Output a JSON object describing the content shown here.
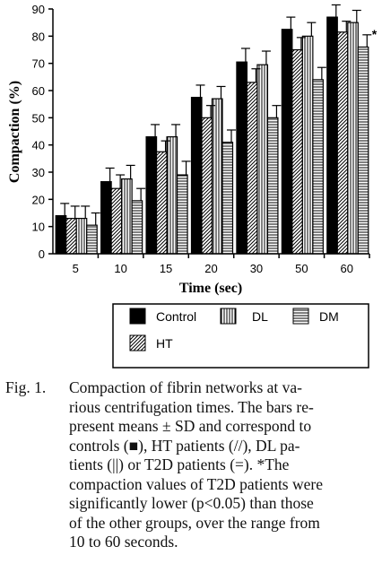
{
  "chart_data": {
    "type": "bar",
    "xlabel": "Time (sec)",
    "ylabel": "Compaction (%)",
    "ylim": [
      0,
      90
    ],
    "yticks": [
      "0",
      "10",
      "20",
      "30",
      "40",
      "50",
      "60",
      "70",
      "80",
      "90"
    ],
    "categories": [
      "5",
      "10",
      "15",
      "20",
      "30",
      "50",
      "60"
    ],
    "series": [
      {
        "name": "Control",
        "pattern": "solid",
        "values": [
          14,
          26.5,
          43,
          57.5,
          70.5,
          82.5,
          87
        ],
        "sd": [
          4.5,
          5,
          4.5,
          4.5,
          5,
          4.5,
          4.5
        ]
      },
      {
        "name": "HT",
        "pattern": "diagonal",
        "values": [
          13,
          24,
          37.5,
          50,
          63,
          75,
          81.5
        ],
        "sd": [
          4.5,
          5,
          4,
          4.5,
          5,
          4.5,
          4
        ]
      },
      {
        "name": "DL",
        "pattern": "vertical",
        "values": [
          13,
          27.5,
          43,
          57,
          69.5,
          80,
          85
        ],
        "sd": [
          4.5,
          5,
          4.5,
          4.5,
          5,
          5,
          4.5
        ]
      },
      {
        "name": "DM",
        "pattern": "horizontal",
        "values": [
          10.5,
          19.5,
          29,
          41,
          50,
          64,
          76
        ],
        "sd": [
          4.5,
          4.5,
          5,
          4.5,
          4.5,
          4.5,
          4.5
        ]
      }
    ],
    "significance_marker": "*",
    "significant_categories": [
      "10",
      "15",
      "20",
      "30",
      "50",
      "60"
    ],
    "legend": {
      "entries": [
        "Control",
        "DL",
        "DM",
        "HT"
      ],
      "placement": "below-chart"
    },
    "colors": {
      "ink": "#000000",
      "background": "#ffffff"
    }
  },
  "caption": {
    "label": "Fig. 1.",
    "lines": [
      "Compaction of fibrin networks at va-",
      "rious centrifugation times. The bars re-",
      "present means ± SD and correspond to",
      "controls (■), HT patients (//), DL pa-",
      "tients (||) or T2D patients (=). *The",
      "compaction values of T2D patients were",
      "significantly lower (p<0.05) than those",
      "of the other groups, over the range from",
      "10 to 60 seconds."
    ]
  }
}
